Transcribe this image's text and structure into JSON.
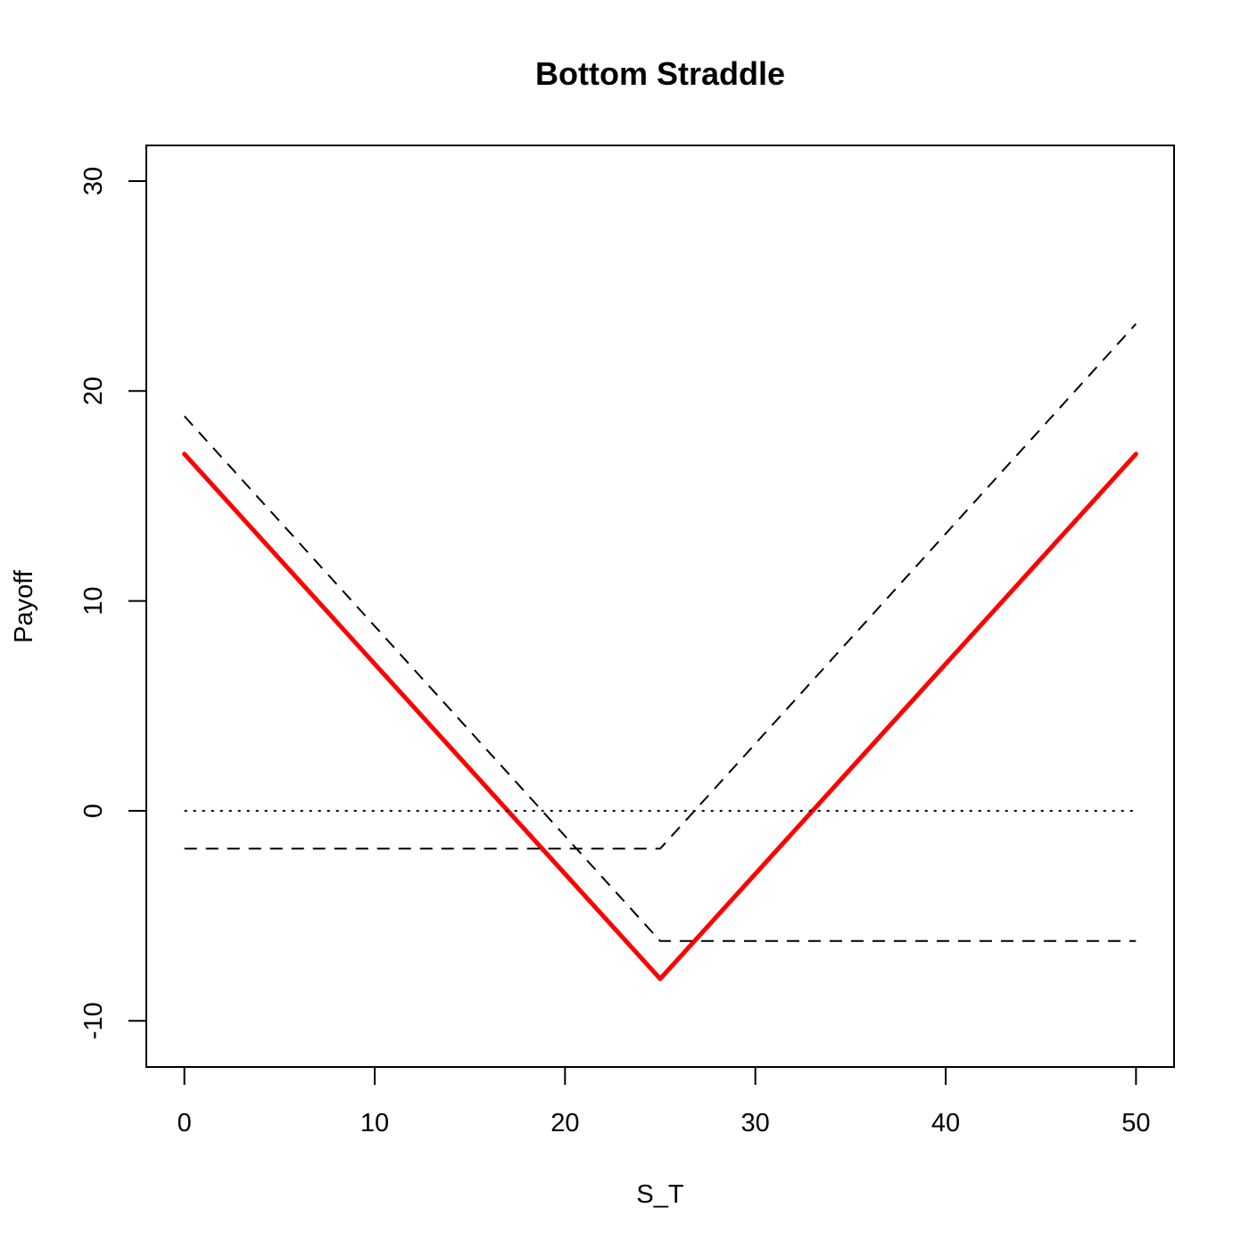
{
  "chart_data": {
    "type": "line",
    "title": "Bottom Straddle",
    "xlabel": "S_T",
    "ylabel": "Payoff",
    "xlim": [
      -2,
      52
    ],
    "ylim": [
      -12.2,
      31.7
    ],
    "xticks": [
      0,
      10,
      20,
      30,
      40,
      50
    ],
    "yticks": [
      -10,
      0,
      10,
      20,
      30
    ],
    "grid": false,
    "legend": "none",
    "series": [
      {
        "style": "solid",
        "color": "#ff0000",
        "x": [
          0,
          25,
          50
        ],
        "y": [
          17,
          -8,
          17
        ]
      },
      {
        "style": "dashed",
        "color": "#000000",
        "x": [
          0,
          25,
          50
        ],
        "y": [
          18.8,
          -6.2,
          -6.2
        ]
      },
      {
        "style": "dashed",
        "color": "#000000",
        "x": [
          0,
          25,
          50
        ],
        "y": [
          -1.8,
          -1.8,
          23.2
        ]
      },
      {
        "style": "dotted",
        "color": "#000000",
        "x": [
          0,
          50
        ],
        "y": [
          0,
          0
        ]
      }
    ]
  }
}
